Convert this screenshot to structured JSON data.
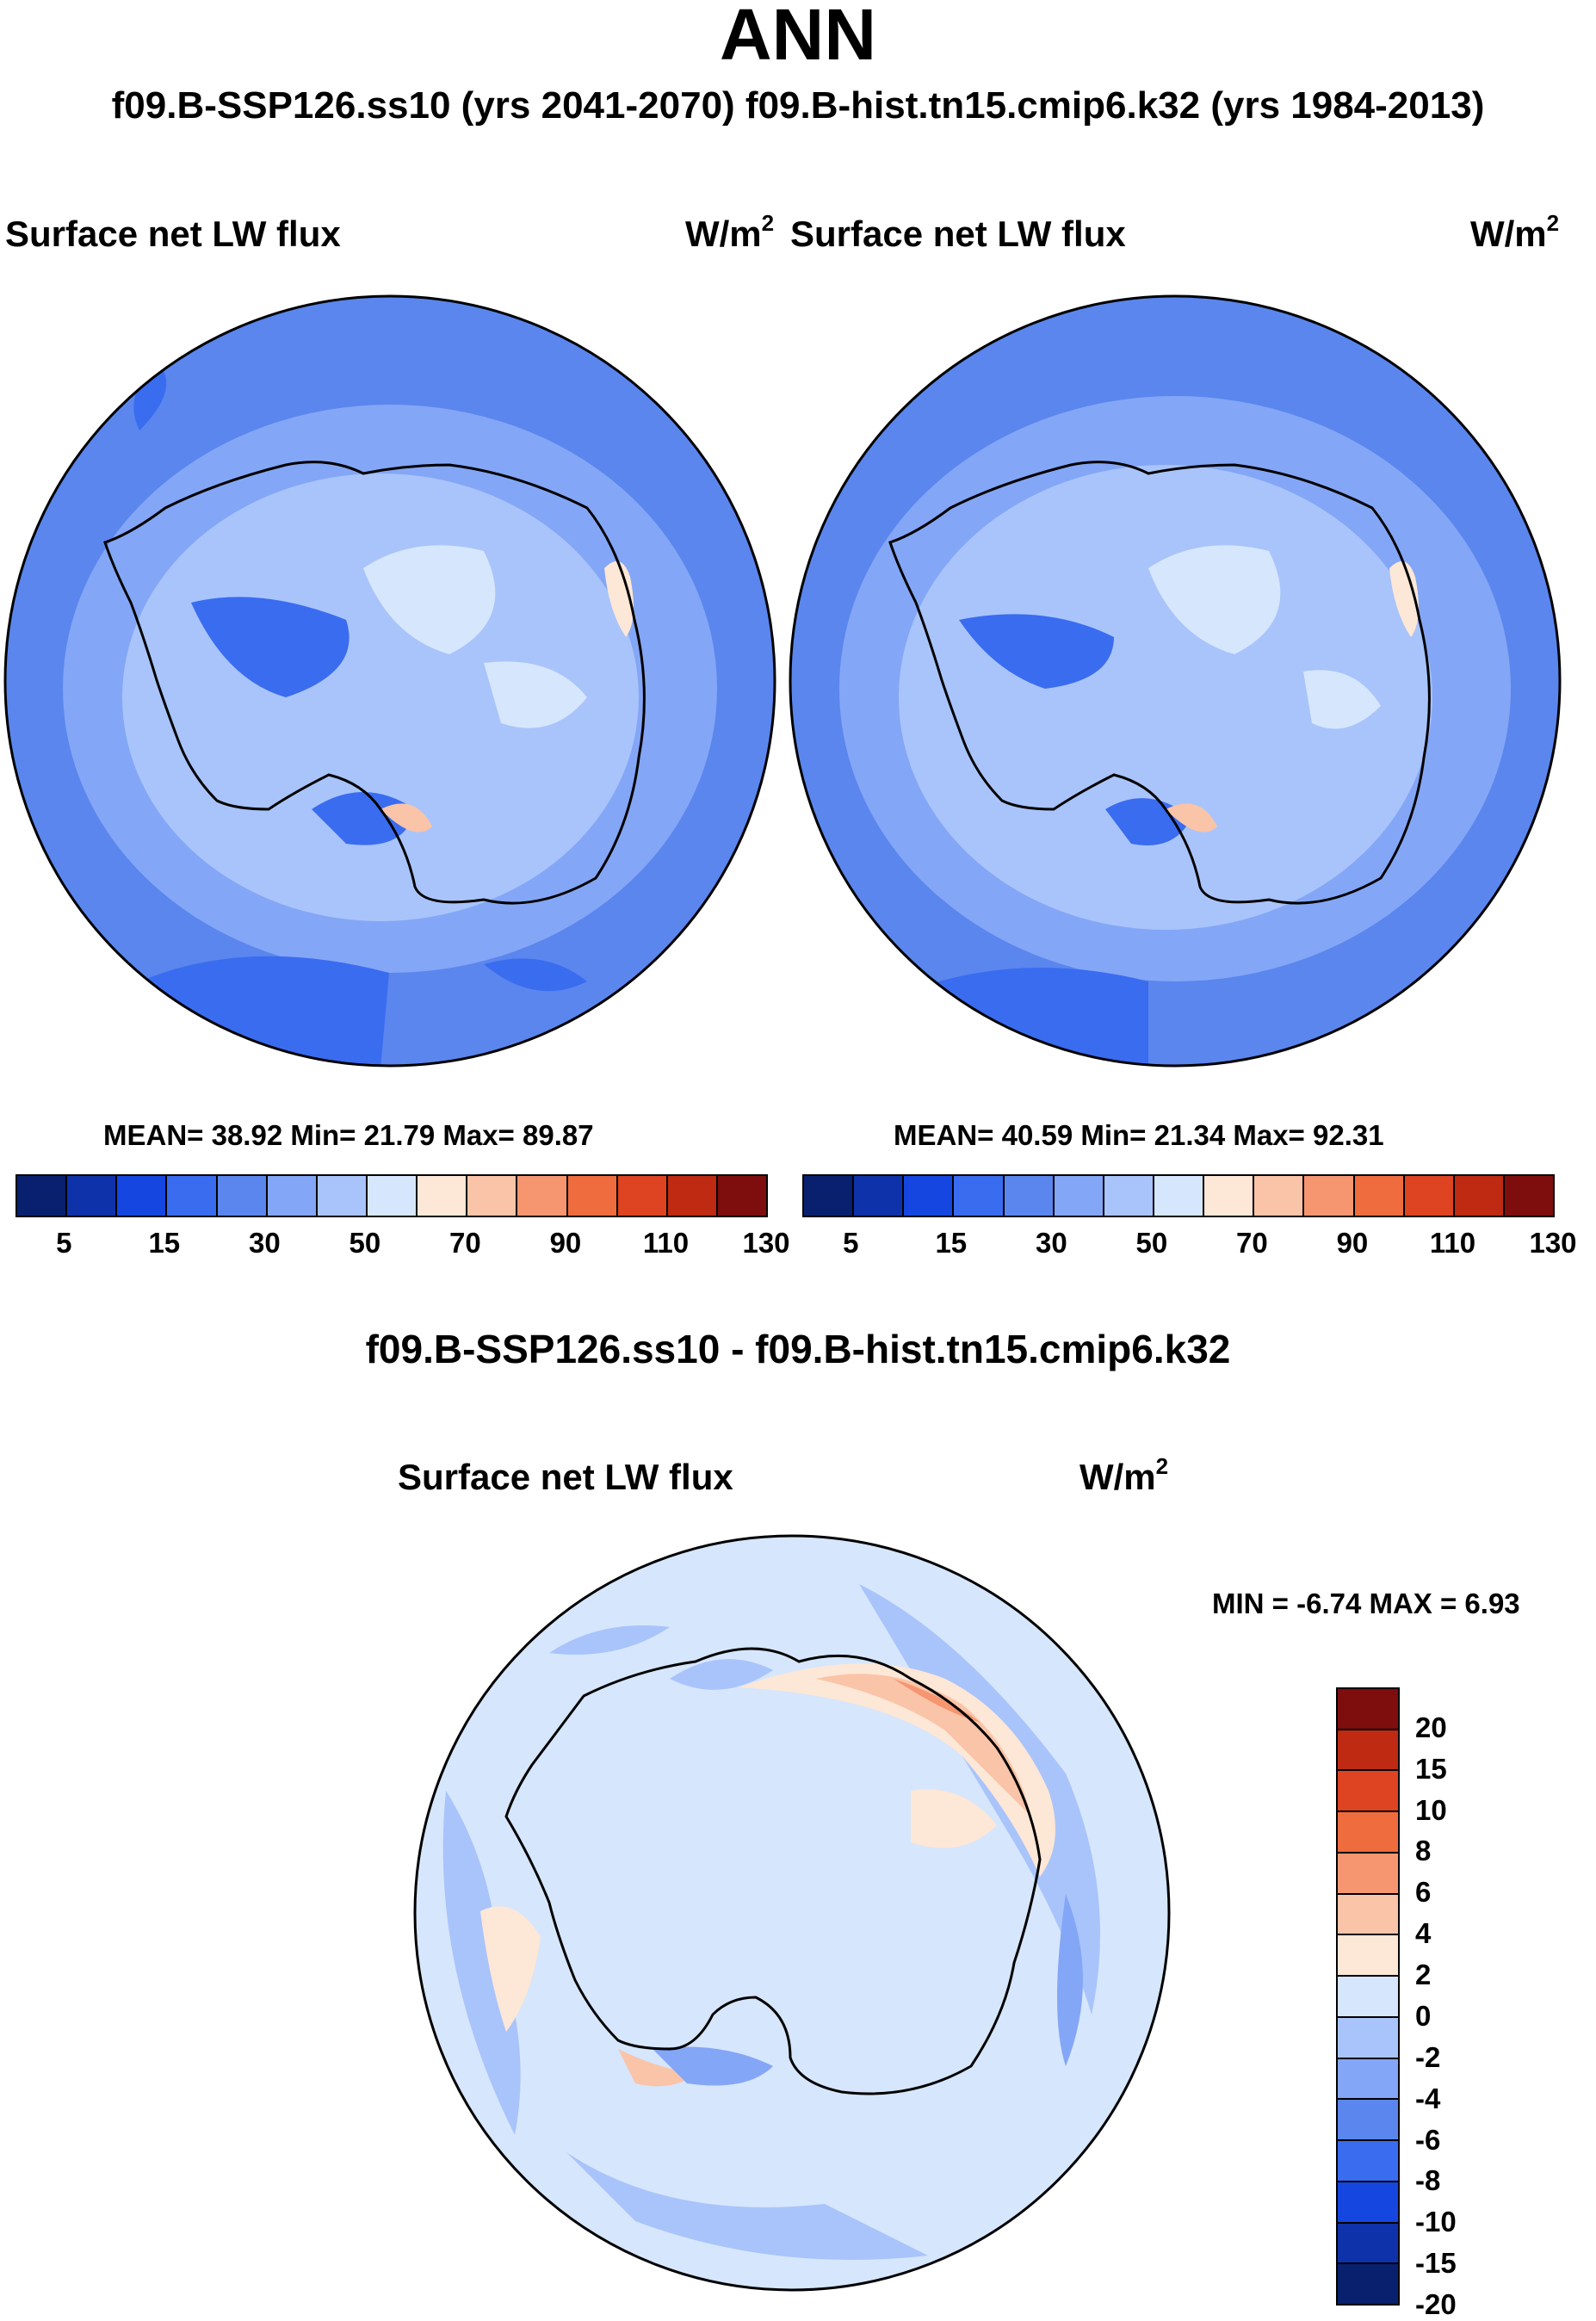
{
  "title": "ANN",
  "case_line": "f09.B-SSP126.ss10 (yrs 2041-2070)  f09.B-hist.tn15.cmip6.k32 (yrs 1984-2013)",
  "panels": [
    {
      "variable": "Surface net LW flux",
      "units": "W/m",
      "units_sup": "2",
      "stats": "MEAN=  38.92  Min=  21.79  Max=  89.87"
    },
    {
      "variable": "Surface net LW flux",
      "units": "W/m",
      "units_sup": "2",
      "stats": "MEAN=  40.59  Min=  21.34  Max=  92.31"
    }
  ],
  "colorbar_top": {
    "colors": [
      "#08206e",
      "#0e32aa",
      "#1646e0",
      "#3a6cf0",
      "#5a86ee",
      "#84a6f6",
      "#a9c4fb",
      "#d6e6fc",
      "#fde7d6",
      "#fac4a8",
      "#f59671",
      "#ef6c3f",
      "#de4322",
      "#be2a12",
      "#7e0d0d"
    ],
    "tick_labels": [
      "5",
      "15",
      "30",
      "50",
      "70",
      "90",
      "110",
      "130"
    ]
  },
  "diff_title": "f09.B-SSP126.ss10 - f09.B-hist.tn15.cmip6.k32",
  "diff_panel": {
    "variable": "Surface net LW flux",
    "units": "W/m",
    "units_sup": "2",
    "stats": "MIN =  -6.74  MAX =   6.93"
  },
  "colorbar_diff": {
    "colors": [
      "#7e0d0d",
      "#be2a12",
      "#de4322",
      "#ef6c3f",
      "#f59671",
      "#fac4a8",
      "#fde7d6",
      "#d6e6fc",
      "#a9c4fb",
      "#84a6f6",
      "#5a86ee",
      "#3a6cf0",
      "#1646e0",
      "#0e32aa",
      "#08206e"
    ],
    "tick_labels": [
      "20",
      "15",
      "10",
      "8",
      "6",
      "4",
      "2",
      "0",
      "-2",
      "-4",
      "-6",
      "-8",
      "-10",
      "-15",
      "-20"
    ]
  }
}
